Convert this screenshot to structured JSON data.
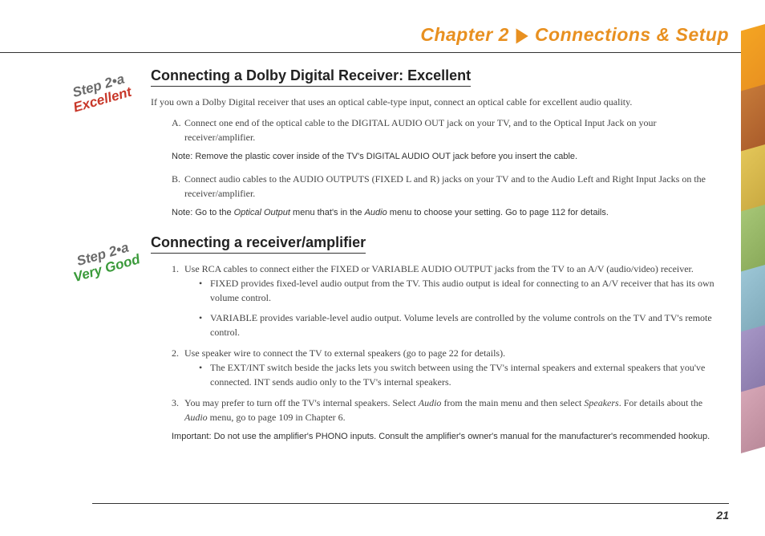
{
  "header": {
    "chapter_label": "Chapter 2",
    "arrow": "▶",
    "title": "Connections & Setup"
  },
  "badges": {
    "badge1": {
      "step": "Step 2•a",
      "rating": "Excellent",
      "rating_color": "#c8382a"
    },
    "badge2": {
      "step": "Step 2•a",
      "rating": "Very Good",
      "rating_color": "#3a9a3a"
    }
  },
  "section1": {
    "heading": "Connecting a Dolby Digital Receiver: Excellent",
    "intro": "If you own a Dolby Digital receiver that uses an optical cable-type input, connect an optical cable for excellent audio quality.",
    "item_a": "Connect one end of the optical cable to the DIGITAL AUDIO OUT jack on your TV, and to the Optical Input Jack on your receiver/amplifier.",
    "note_a": "Note: Remove the plastic cover inside of the TV's DIGITAL AUDIO OUT jack before you insert the cable.",
    "item_b": "Connect audio cables to the AUDIO OUTPUTS (FIXED L and R) jacks on your TV and to the Audio Left and Right Input Jacks on the receiver/amplifier.",
    "note_b_pre": "Note: Go to the ",
    "note_b_i1": "Optical Output",
    "note_b_mid": " menu that's in the ",
    "note_b_i2": "Audio",
    "note_b_post": " menu to choose your setting. Go to page 112 for details."
  },
  "section2": {
    "heading": "Connecting a receiver/amplifier",
    "item1": "Use RCA cables to connect either the FIXED or VARIABLE AUDIO OUTPUT jacks from the TV to an A/V (audio/video) receiver.",
    "item1_b1": "FIXED provides fixed-level audio output from the TV. This audio output is ideal for connecting to an A/V receiver that has its own volume control.",
    "item1_b2": "VARIABLE provides variable-level audio output. Volume levels are controlled by the volume controls on the TV and TV's remote control.",
    "item2": "Use speaker wire to connect the TV to external speakers (go to page 22 for details).",
    "item2_b1": "The EXT/INT switch beside the jacks lets you switch between using the TV's internal speakers and external speakers that you've connected. INT sends audio only to the TV's internal speakers.",
    "item3_pre": "You may prefer to turn off the TV's internal speakers. Select ",
    "item3_i1": "Audio",
    "item3_mid": " from the main menu and then select ",
    "item3_i2": "Speakers",
    "item3_mid2": ". For details about the ",
    "item3_i3": "Audio",
    "item3_post": " menu, go to page 109 in Chapter 6.",
    "important": "Important: Do not use the amplifier's PHONO inputs. Consult the amplifier's owner's manual for the manufacturer's recommended hookup."
  },
  "footer": {
    "page_number": "21"
  },
  "colors": {
    "accent": "#e89020",
    "rule": "#333333",
    "body_text": "#444444"
  }
}
